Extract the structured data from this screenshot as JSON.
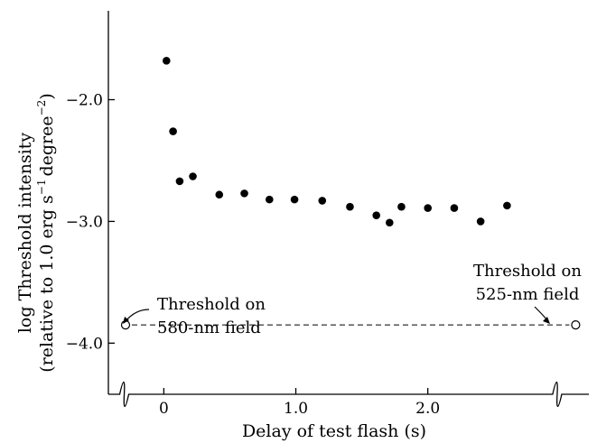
{
  "chart_data": {
    "type": "scatter",
    "xlabel": "Delay of test flash (s)",
    "ylabel_line1": "log Threshold intensity",
    "ylabel_line2_prefix": "(relative to 1.0 erg s",
    "ylabel_line2_exp1": "−1",
    "ylabel_line2_mid": "degree",
    "ylabel_line2_exp2": "−2",
    "ylabel_line2_suffix": ")",
    "xlim": [
      -0.42,
      3.22
    ],
    "ylim": [
      -4.42,
      -1.27
    ],
    "x_ticks": [
      {
        "value": 0.0,
        "label": "0"
      },
      {
        "value": 1.0,
        "label": "1.0"
      },
      {
        "value": 2.0,
        "label": "2.0"
      }
    ],
    "y_ticks": [
      {
        "value": -2.0,
        "label": "−2.0"
      },
      {
        "value": -3.0,
        "label": "−3.0"
      },
      {
        "value": -4.0,
        "label": "−4.0"
      }
    ],
    "x_axis_breaks": [
      -0.3,
      2.98
    ],
    "series": [
      {
        "marker": "filled-circle",
        "points": [
          {
            "x": 0.02,
            "y": -1.68
          },
          {
            "x": 0.07,
            "y": -2.26
          },
          {
            "x": 0.12,
            "y": -2.67
          },
          {
            "x": 0.22,
            "y": -2.63
          },
          {
            "x": 0.42,
            "y": -2.78
          },
          {
            "x": 0.61,
            "y": -2.77
          },
          {
            "x": 0.8,
            "y": -2.82
          },
          {
            "x": 0.99,
            "y": -2.82
          },
          {
            "x": 1.2,
            "y": -2.83
          },
          {
            "x": 1.41,
            "y": -2.88
          },
          {
            "x": 1.61,
            "y": -2.95
          },
          {
            "x": 1.71,
            "y": -3.01
          },
          {
            "x": 1.8,
            "y": -2.88
          },
          {
            "x": 2.0,
            "y": -2.89
          },
          {
            "x": 2.2,
            "y": -2.89
          },
          {
            "x": 2.4,
            "y": -3.0
          },
          {
            "x": 2.6,
            "y": -2.87
          }
        ]
      },
      {
        "marker": "open-circle",
        "points": [
          {
            "x": -0.29,
            "y": -3.85
          },
          {
            "x": 3.12,
            "y": -3.85
          }
        ]
      }
    ],
    "reference_line": {
      "y": -3.85,
      "x_from": -0.29,
      "x_to": 3.12,
      "style": "dashed"
    },
    "annotations": [
      {
        "id": "left",
        "line1": "Threshold on",
        "line2": "580-nm field",
        "points_to_x": -0.29
      },
      {
        "id": "right",
        "line1": "Threshold on",
        "line2": "525-nm field",
        "points_to_x": 3.12
      }
    ]
  }
}
